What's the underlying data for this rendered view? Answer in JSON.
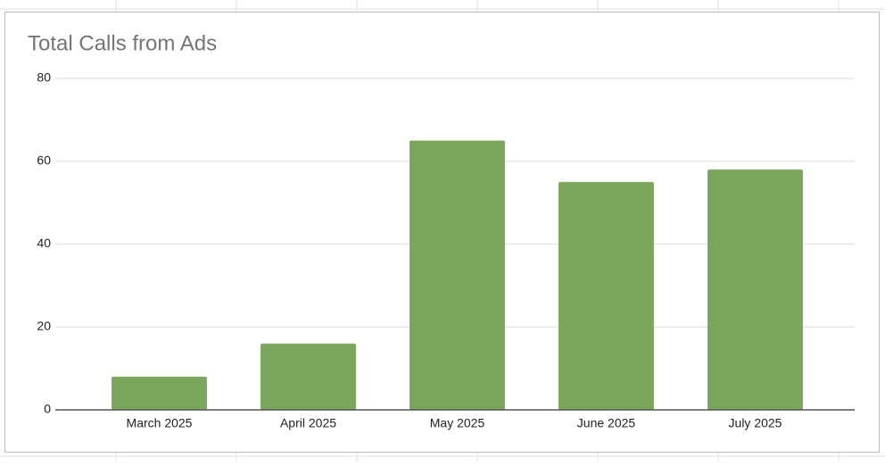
{
  "chart_data": {
    "type": "bar",
    "title": "Total Calls from Ads",
    "categories": [
      "March 2025",
      "April 2025",
      "May 2025",
      "June 2025",
      "July 2025"
    ],
    "values": [
      8,
      16,
      65,
      55,
      58
    ],
    "color": "#7aa75c",
    "ylim": [
      0,
      80
    ],
    "yticks": [
      0,
      20,
      40,
      60,
      80
    ],
    "grid": true
  }
}
